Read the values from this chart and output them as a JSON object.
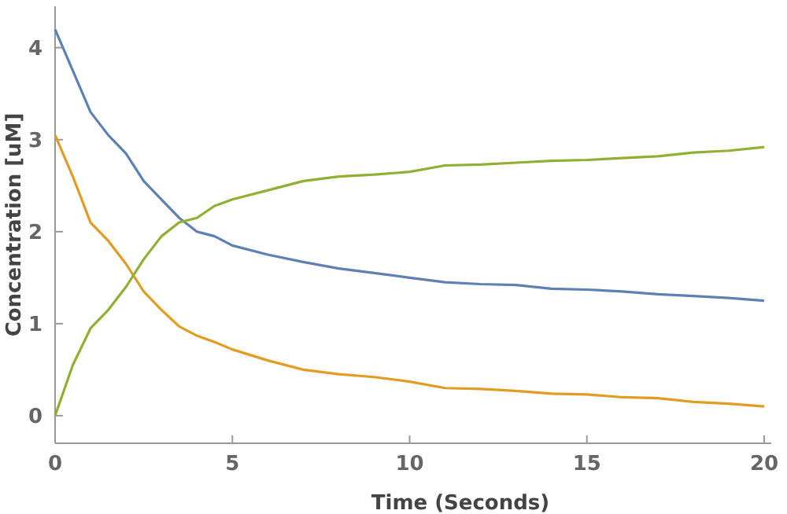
{
  "chart_data": {
    "type": "line",
    "xlabel": "Time  (Seconds)",
    "ylabel": "Concentration  [uM]",
    "xlim": [
      0,
      20.2
    ],
    "ylim": [
      -0.3,
      4.45
    ],
    "xticks": [
      0,
      5,
      10,
      15,
      20
    ],
    "yticks": [
      0,
      1,
      2,
      3,
      4
    ],
    "grid": false,
    "marker": "none",
    "line_style": "solid",
    "x": [
      0,
      0.5,
      1,
      1.5,
      2,
      2.5,
      3,
      3.5,
      4,
      4.5,
      5,
      6,
      7,
      8,
      9,
      10,
      11,
      12,
      13,
      14,
      15,
      16,
      17,
      18,
      19,
      20
    ],
    "series": [
      {
        "color": "#5e81b5",
        "values": [
          4.2,
          3.75,
          3.3,
          3.05,
          2.85,
          2.55,
          2.35,
          2.15,
          2.0,
          1.95,
          1.85,
          1.75,
          1.67,
          1.6,
          1.55,
          1.5,
          1.45,
          1.43,
          1.42,
          1.38,
          1.37,
          1.35,
          1.32,
          1.3,
          1.28,
          1.25
        ]
      },
      {
        "color": "#e19c24",
        "values": [
          3.05,
          2.6,
          2.1,
          1.9,
          1.65,
          1.35,
          1.15,
          0.97,
          0.87,
          0.8,
          0.72,
          0.6,
          0.5,
          0.45,
          0.42,
          0.37,
          0.3,
          0.29,
          0.27,
          0.24,
          0.23,
          0.2,
          0.19,
          0.15,
          0.13,
          0.1
        ]
      },
      {
        "color": "#8fb032",
        "values": [
          0,
          0.55,
          0.95,
          1.15,
          1.4,
          1.7,
          1.95,
          2.1,
          2.15,
          2.28,
          2.35,
          2.45,
          2.55,
          2.6,
          2.62,
          2.65,
          2.72,
          2.73,
          2.75,
          2.77,
          2.78,
          2.8,
          2.82,
          2.86,
          2.88,
          2.92
        ]
      }
    ]
  }
}
